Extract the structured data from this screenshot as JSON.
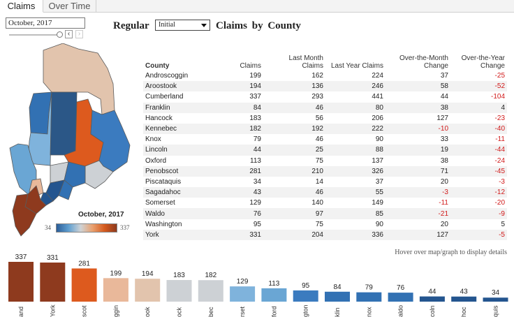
{
  "tabs": [
    {
      "label": "Claims",
      "active": true
    },
    {
      "label": "Over Time",
      "active": false
    }
  ],
  "date_filter": {
    "value": "October, 2017"
  },
  "header": {
    "regular_label": "Regular",
    "dropdown_value": "Initial",
    "title": "Claims by County"
  },
  "map": {
    "legend_title": "October, 2017",
    "legend_min": "34",
    "legend_max": "337",
    "colors": {
      "low": "#2b5d98",
      "mid": "#cfd3d6",
      "high": "#8e3a1e"
    }
  },
  "table": {
    "headers": {
      "county": "County",
      "claims": "Claims",
      "last_month": "Last Month Claims",
      "last_month_l1": "Last Month",
      "last_month_l2": "Claims",
      "last_year": "Last Year Claims",
      "otm_l1": "Over-the-Month",
      "otm_l2": "Change",
      "oty_l1": "Over-the-Year",
      "oty_l2": "Change"
    },
    "rows": [
      {
        "county": "Androscoggin",
        "claims": "199",
        "last_month": "162",
        "last_year": "224",
        "otm": "37",
        "oty": "-25"
      },
      {
        "county": "Aroostook",
        "claims": "194",
        "last_month": "136",
        "last_year": "246",
        "otm": "58",
        "oty": "-52"
      },
      {
        "county": "Cumberland",
        "claims": "337",
        "last_month": "293",
        "last_year": "441",
        "otm": "44",
        "oty": "-104"
      },
      {
        "county": "Franklin",
        "claims": "84",
        "last_month": "46",
        "last_year": "80",
        "otm": "38",
        "oty": "4"
      },
      {
        "county": "Hancock",
        "claims": "183",
        "last_month": "56",
        "last_year": "206",
        "otm": "127",
        "oty": "-23"
      },
      {
        "county": "Kennebec",
        "claims": "182",
        "last_month": "192",
        "last_year": "222",
        "otm": "-10",
        "oty": "-40"
      },
      {
        "county": "Knox",
        "claims": "79",
        "last_month": "46",
        "last_year": "90",
        "otm": "33",
        "oty": "-11"
      },
      {
        "county": "Lincoln",
        "claims": "44",
        "last_month": "25",
        "last_year": "88",
        "otm": "19",
        "oty": "-44"
      },
      {
        "county": "Oxford",
        "claims": "113",
        "last_month": "75",
        "last_year": "137",
        "otm": "38",
        "oty": "-24"
      },
      {
        "county": "Penobscot",
        "claims": "281",
        "last_month": "210",
        "last_year": "326",
        "otm": "71",
        "oty": "-45"
      },
      {
        "county": "Piscataquis",
        "claims": "34",
        "last_month": "14",
        "last_year": "37",
        "otm": "20",
        "oty": "-3"
      },
      {
        "county": "Sagadahoc",
        "claims": "43",
        "last_month": "46",
        "last_year": "55",
        "otm": "-3",
        "oty": "-12"
      },
      {
        "county": "Somerset",
        "claims": "129",
        "last_month": "140",
        "last_year": "149",
        "otm": "-11",
        "oty": "-20"
      },
      {
        "county": "Waldo",
        "claims": "76",
        "last_month": "97",
        "last_year": "85",
        "otm": "-21",
        "oty": "-9"
      },
      {
        "county": "Washington",
        "claims": "95",
        "last_month": "75",
        "last_year": "90",
        "otm": "20",
        "oty": "5"
      },
      {
        "county": "York",
        "claims": "331",
        "last_month": "204",
        "last_year": "336",
        "otm": "127",
        "oty": "-5"
      }
    ]
  },
  "hint": "Hover over map/graph to display details",
  "chart_data": {
    "type": "bar",
    "categories": [
      "and",
      "York",
      "scot",
      "ggin",
      "ook",
      "ock",
      "bec",
      "rset",
      "ford",
      "gton",
      "klin",
      "nox",
      "aldo",
      "coln",
      "hoc",
      "quis"
    ],
    "values": [
      337,
      331,
      281,
      199,
      194,
      183,
      182,
      129,
      113,
      95,
      84,
      79,
      76,
      44,
      43,
      34
    ],
    "colors": [
      "#8e3a1e",
      "#8e3a1e",
      "#dd5a1e",
      "#e9b89a",
      "#e2c4ad",
      "#cdd1d5",
      "#cdd1d5",
      "#7fb3dc",
      "#6aa6d4",
      "#3b7bbf",
      "#3271b3",
      "#3271b3",
      "#3271b3",
      "#24558f",
      "#24558f",
      "#24558f"
    ],
    "ylim": [
      0,
      337
    ],
    "title": "",
    "xlabel": "",
    "ylabel": ""
  }
}
